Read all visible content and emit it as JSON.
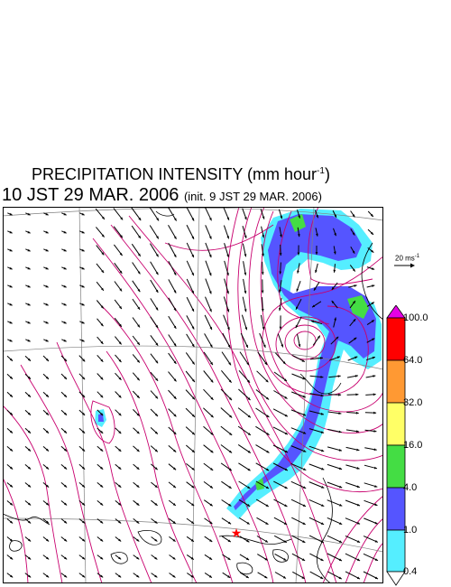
{
  "title": {
    "main": "PRECIPITATION INTENSITY (mm hour",
    "unit_sup": "-1",
    "close": ")"
  },
  "subtitle": {
    "valid_time": "10 JST 29 MAR. 2006",
    "init": "(init. 9 JST 29 MAR. 2006)"
  },
  "wind_scale": {
    "label": "20 ms",
    "sup": "-1"
  },
  "marker": {
    "symbol": "star",
    "color": "#ff0000"
  },
  "colorbar": {
    "levels": [
      "100.0",
      "64.0",
      "32.0",
      "16.0",
      "4.0",
      "1.0",
      "0.4"
    ],
    "colors": [
      "#e600e6",
      "#ff0000",
      "#ff9933",
      "#ffff66",
      "#44dd44",
      "#5555ff",
      "#55eeff",
      "#ffffff"
    ]
  },
  "colors": {
    "contour": "#c8006e",
    "grid": "#808080",
    "coast": "#000000",
    "arrows": "#000000"
  }
}
